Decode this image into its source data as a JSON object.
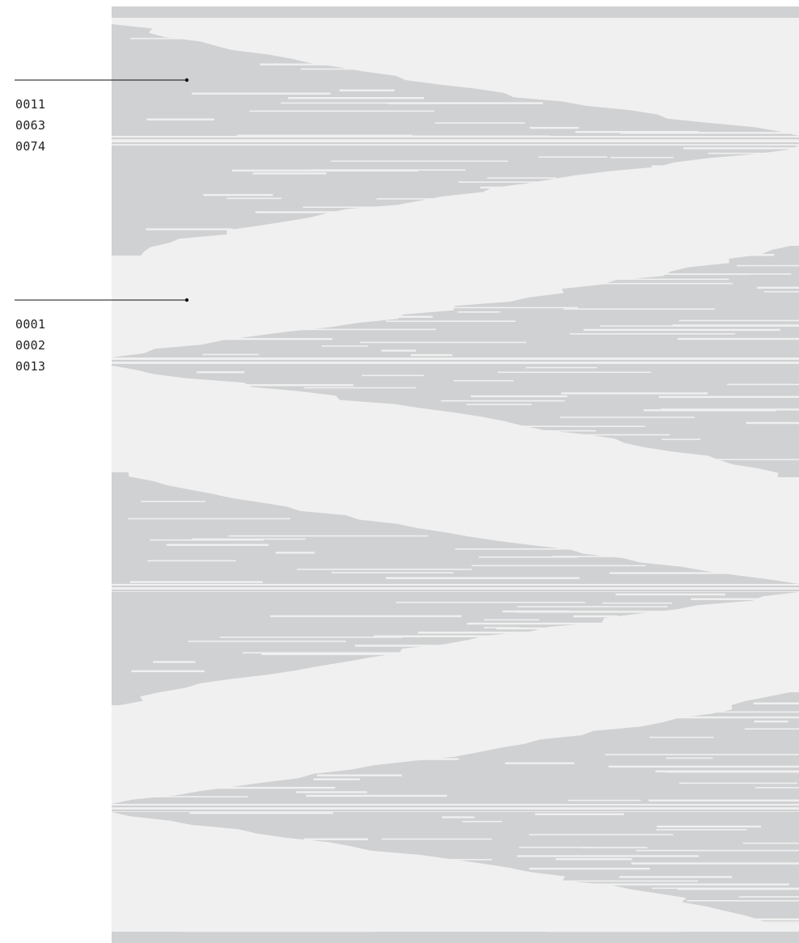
{
  "colors": {
    "background": "#ffffff",
    "panel": "#f0f0f0",
    "band": "#d0d1d3",
    "streak": "#f0f0f0",
    "leader_line": "#111111",
    "label_text": "#222222"
  },
  "annotations": [
    {
      "ids": [
        "0011",
        "0063",
        "0074"
      ]
    },
    {
      "ids": [
        "0001",
        "0002",
        "0013"
      ]
    }
  ]
}
